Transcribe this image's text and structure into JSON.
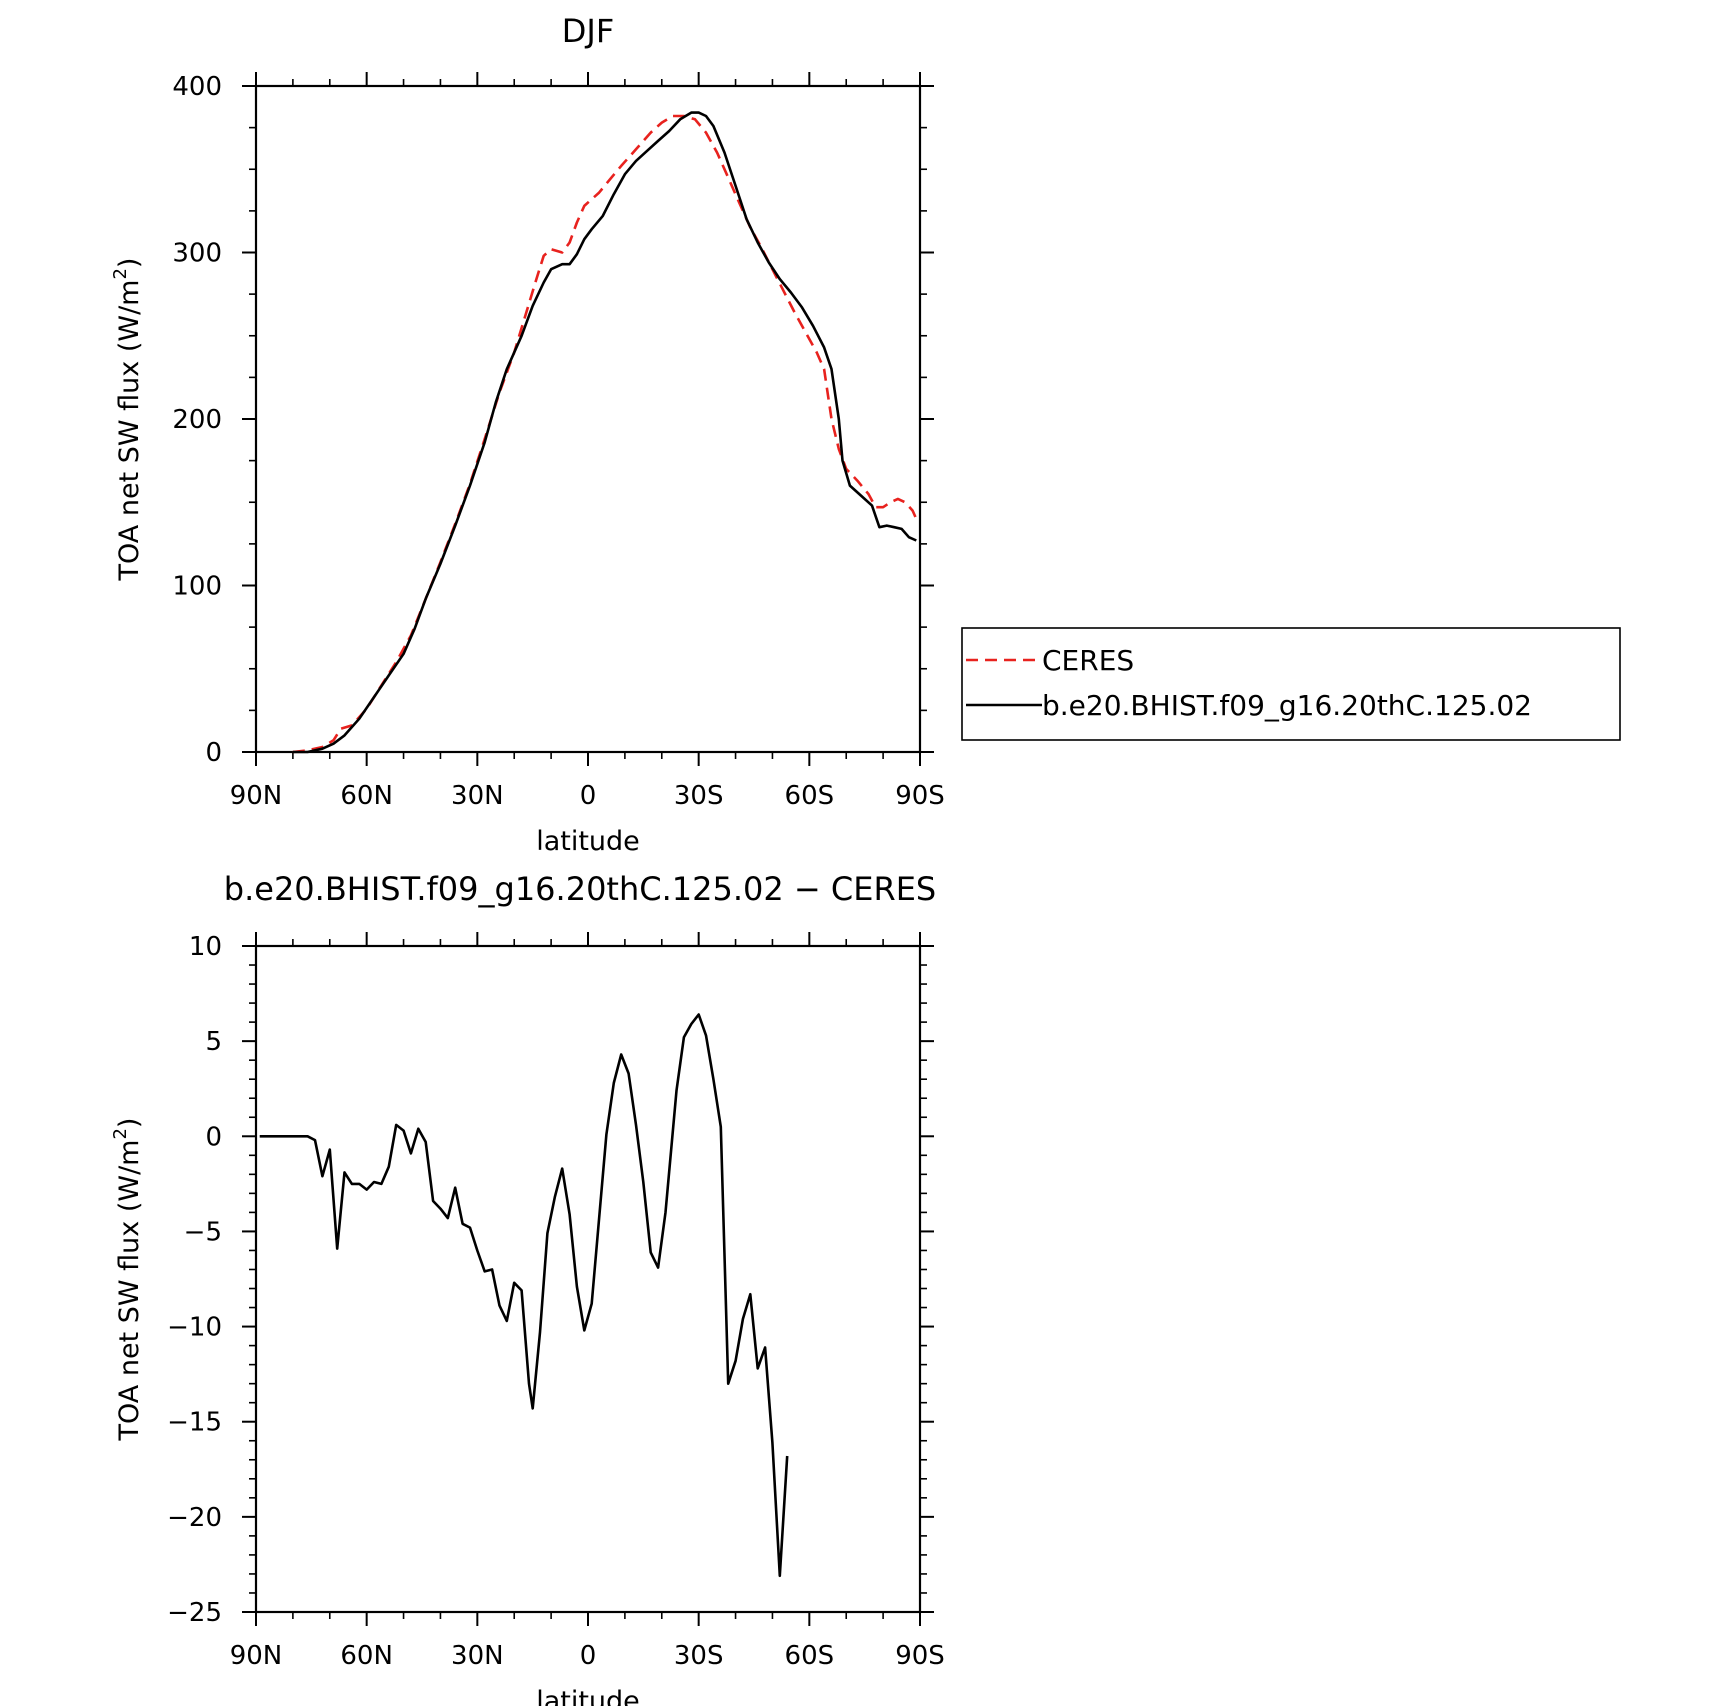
{
  "chart_data": [
    {
      "type": "line",
      "title": "DJF",
      "xlabel": "latitude",
      "ylabel": "TOA net SW flux (W/m²)",
      "ylabel_parts": {
        "main": "TOA net SW flux (W/m",
        "sup": "2",
        "tail": ")"
      },
      "xlim": [
        90,
        -90
      ],
      "ylim": [
        0,
        400
      ],
      "xticks": [
        {
          "value": 90,
          "label": "90N"
        },
        {
          "value": 60,
          "label": "60N"
        },
        {
          "value": 30,
          "label": "30N"
        },
        {
          "value": 0,
          "label": "0"
        },
        {
          "value": -30,
          "label": "30S"
        },
        {
          "value": -60,
          "label": "60S"
        },
        {
          "value": -90,
          "label": "90S"
        }
      ],
      "yticks": [
        {
          "value": 0,
          "label": "0"
        },
        {
          "value": 100,
          "label": "100"
        },
        {
          "value": 200,
          "label": "200"
        },
        {
          "value": 300,
          "label": "300"
        },
        {
          "value": 400,
          "label": "400"
        }
      ],
      "grid": false,
      "legend": "right-outside",
      "series": [
        {
          "name": "CERES",
          "color": "#e8221e",
          "dash": true,
          "points": [
            [
              80,
              0
            ],
            [
              76,
              1
            ],
            [
              72,
              3
            ],
            [
              69,
              7
            ],
            [
              67,
              14
            ],
            [
              64,
              16
            ],
            [
              60,
              26
            ],
            [
              56,
              40
            ],
            [
              52,
              54
            ],
            [
              48,
              70
            ],
            [
              44,
              92
            ],
            [
              40,
              114
            ],
            [
              36,
              137
            ],
            [
              32,
              161
            ],
            [
              28,
              188
            ],
            [
              24,
              216
            ],
            [
              20,
              240
            ],
            [
              17,
              262
            ],
            [
              14,
              284
            ],
            [
              12,
              298
            ],
            [
              10,
              302
            ],
            [
              7,
              300
            ],
            [
              5,
              306
            ],
            [
              3,
              318
            ],
            [
              1,
              328
            ],
            [
              -1,
              332
            ],
            [
              -3,
              336
            ],
            [
              -6,
              344
            ],
            [
              -9,
              352
            ],
            [
              -13,
              362
            ],
            [
              -17,
              372
            ],
            [
              -20,
              378
            ],
            [
              -23,
              382
            ],
            [
              -26,
              382
            ],
            [
              -29,
              380
            ],
            [
              -32,
              372
            ],
            [
              -35,
              360
            ],
            [
              -38,
              345
            ],
            [
              -41,
              330
            ],
            [
              -44,
              315
            ],
            [
              -47,
              303
            ],
            [
              -50,
              290
            ],
            [
              -53,
              277
            ],
            [
              -56,
              264
            ],
            [
              -59,
              252
            ],
            [
              -62,
              240
            ],
            [
              -64,
              230
            ],
            [
              -66,
              200
            ],
            [
              -68,
              182
            ],
            [
              -70,
              170
            ],
            [
              -73,
              163
            ],
            [
              -76,
              155
            ],
            [
              -78,
              147
            ],
            [
              -80,
              147
            ],
            [
              -82,
              150
            ],
            [
              -84,
              152
            ],
            [
              -86,
              150
            ],
            [
              -88,
              145
            ],
            [
              -89,
              140
            ]
          ]
        },
        {
          "name": "b.e20.BHIST.f09_g16.20thC.125.02",
          "color": "#000000",
          "dash": false,
          "points": [
            [
              80,
              0
            ],
            [
              76,
              0
            ],
            [
              72,
              2
            ],
            [
              69,
              5
            ],
            [
              66,
              10
            ],
            [
              62,
              20
            ],
            [
              58,
              33
            ],
            [
              54,
              46
            ],
            [
              50,
              59
            ],
            [
              47,
              74
            ],
            [
              44,
              92
            ],
            [
              40,
              113
            ],
            [
              36,
              136
            ],
            [
              32,
              160
            ],
            [
              28,
              186
            ],
            [
              25,
              210
            ],
            [
              22,
              230
            ],
            [
              18,
              250
            ],
            [
              15,
              268
            ],
            [
              12,
              282
            ],
            [
              10,
              290
            ],
            [
              7,
              293
            ],
            [
              5,
              293
            ],
            [
              3,
              299
            ],
            [
              1,
              308
            ],
            [
              -1,
              314
            ],
            [
              -4,
              322
            ],
            [
              -7,
              335
            ],
            [
              -10,
              347
            ],
            [
              -13,
              355
            ],
            [
              -16,
              361
            ],
            [
              -19,
              367
            ],
            [
              -22,
              373
            ],
            [
              -25,
              380
            ],
            [
              -28,
              384
            ],
            [
              -30,
              384
            ],
            [
              -32,
              382
            ],
            [
              -34,
              376
            ],
            [
              -37,
              360
            ],
            [
              -40,
              340
            ],
            [
              -43,
              320
            ],
            [
              -46,
              306
            ],
            [
              -49,
              294
            ],
            [
              -52,
              284
            ],
            [
              -55,
              276
            ],
            [
              -58,
              267
            ],
            [
              -61,
              256
            ],
            [
              -64,
              243
            ],
            [
              -66,
              230
            ],
            [
              -68,
              200
            ],
            [
              -69,
              175
            ],
            [
              -71,
              160
            ],
            [
              -74,
              154
            ],
            [
              -77,
              148
            ],
            [
              -79,
              135
            ],
            [
              -81,
              136
            ],
            [
              -83,
              135
            ],
            [
              -85,
              134
            ],
            [
              -87,
              129
            ],
            [
              -89,
              127
            ]
          ]
        }
      ]
    },
    {
      "type": "line",
      "title": "b.e20.BHIST.f09_g16.20thC.125.02 − CERES",
      "xlabel": "latitude",
      "ylabel": "TOA net SW flux (W/m²)",
      "ylabel_parts": {
        "main": "TOA net SW flux (W/m",
        "sup": "2",
        "tail": ")"
      },
      "xlim": [
        90,
        -90
      ],
      "ylim": [
        -25,
        10
      ],
      "xticks": [
        {
          "value": 90,
          "label": "90N"
        },
        {
          "value": 60,
          "label": "60N"
        },
        {
          "value": 30,
          "label": "30N"
        },
        {
          "value": 0,
          "label": "0"
        },
        {
          "value": -30,
          "label": "30S"
        },
        {
          "value": -60,
          "label": "60S"
        },
        {
          "value": -90,
          "label": "90S"
        }
      ],
      "yticks": [
        {
          "value": 10,
          "label": "10"
        },
        {
          "value": 5,
          "label": "5"
        },
        {
          "value": 0,
          "label": "0"
        },
        {
          "value": -5,
          "label": "−5"
        },
        {
          "value": -10,
          "label": "−10"
        },
        {
          "value": -15,
          "label": "−15"
        },
        {
          "value": -20,
          "label": "−20"
        },
        {
          "value": -25,
          "label": "−25"
        }
      ],
      "grid": false,
      "series": [
        {
          "color": "#000000",
          "dash": false,
          "points": [
            [
              89,
              0
            ],
            [
              83,
              0
            ],
            [
              79,
              0
            ],
            [
              76,
              0
            ],
            [
              74,
              -0.2
            ],
            [
              72,
              -2.1
            ],
            [
              70,
              -0.7
            ],
            [
              68,
              -5.9
            ],
            [
              66,
              -1.9
            ],
            [
              64,
              -2.5
            ],
            [
              62,
              -2.5
            ],
            [
              60,
              -2.8
            ],
            [
              58,
              -2.4
            ],
            [
              56,
              -2.5
            ],
            [
              54,
              -1.6
            ],
            [
              52,
              0.6
            ],
            [
              50,
              0.3
            ],
            [
              48,
              -0.9
            ],
            [
              46,
              0.4
            ],
            [
              44,
              -0.3
            ],
            [
              42,
              -3.4
            ],
            [
              40,
              -3.8
            ],
            [
              38,
              -4.3
            ],
            [
              36,
              -2.7
            ],
            [
              34,
              -4.6
            ],
            [
              32,
              -4.8
            ],
            [
              30,
              -6.0
            ],
            [
              28,
              -7.1
            ],
            [
              26,
              -7.0
            ],
            [
              24,
              -8.9
            ],
            [
              22,
              -9.7
            ],
            [
              20,
              -7.7
            ],
            [
              18,
              -8.1
            ],
            [
              16,
              -13.0
            ],
            [
              15,
              -14.3
            ],
            [
              13,
              -10.3
            ],
            [
              11,
              -5.1
            ],
            [
              9,
              -3.2
            ],
            [
              7,
              -1.7
            ],
            [
              5,
              -4.1
            ],
            [
              3,
              -7.9
            ],
            [
              1,
              -10.2
            ],
            [
              -1,
              -8.8
            ],
            [
              -5,
              0.1
            ],
            [
              -7,
              2.8
            ],
            [
              -9,
              4.3
            ],
            [
              -11,
              3.3
            ],
            [
              -13,
              0.6
            ],
            [
              -15,
              -2.4
            ],
            [
              -17,
              -6.1
            ],
            [
              -19,
              -6.9
            ],
            [
              -21,
              -4.0
            ],
            [
              -24,
              2.4
            ],
            [
              -26,
              5.2
            ],
            [
              -28,
              5.9
            ],
            [
              -30,
              6.4
            ],
            [
              -32,
              5.3
            ],
            [
              -34,
              3.0
            ],
            [
              -36,
              0.5
            ],
            [
              -38,
              -13.0
            ],
            [
              -40,
              -11.8
            ],
            [
              -42,
              -9.6
            ],
            [
              -44,
              -8.3
            ],
            [
              -46,
              -12.2
            ],
            [
              -48,
              -11.1
            ],
            [
              -50,
              -16.1
            ],
            [
              -52,
              -23.1
            ],
            [
              -54,
              -16.8
            ]
          ]
        }
      ]
    }
  ],
  "legend": {
    "entries": [
      {
        "label": "CERES",
        "color": "#e8221e",
        "dash": true
      },
      {
        "label": "b.e20.BHIST.f09_g16.20thC.125.02",
        "color": "#000000",
        "dash": false
      }
    ]
  }
}
